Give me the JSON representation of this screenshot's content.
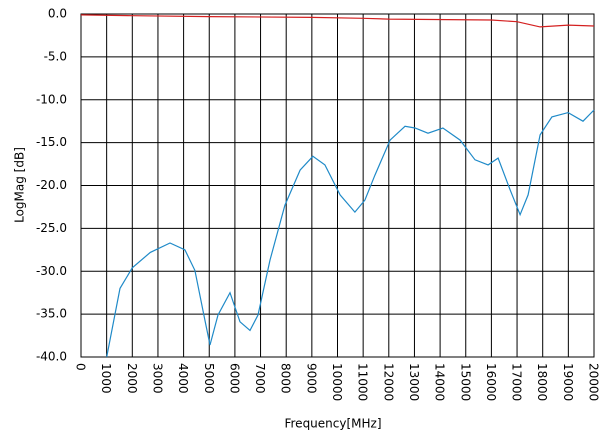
{
  "chart_data": {
    "type": "line",
    "xlabel": "Frequency[MHz]",
    "ylabel": "LogMag [dB]",
    "xlim": [
      0,
      20000
    ],
    "ylim": [
      -40,
      0
    ],
    "xticks": [
      0,
      1000,
      2000,
      3000,
      4000,
      5000,
      6000,
      7000,
      8000,
      9000,
      10000,
      11000,
      12000,
      13000,
      14000,
      15000,
      16000,
      17000,
      18000,
      19000,
      20000
    ],
    "yticks": [
      {
        "value": 0,
        "label": "0.0"
      },
      {
        "value": -5,
        "label": "-5.0"
      },
      {
        "value": -10,
        "label": "-10.0"
      },
      {
        "value": -15,
        "label": "-15.0"
      },
      {
        "value": -20,
        "label": "-20.0"
      },
      {
        "value": -25,
        "label": "-25.0"
      },
      {
        "value": -30,
        "label": "-30.0"
      },
      {
        "value": -35,
        "label": "-35.0"
      },
      {
        "value": -40,
        "label": "-40.0"
      }
    ],
    "grid": true,
    "series": [
      {
        "color": "#d42020",
        "x": [
          0,
          2000,
          5000,
          9000,
          11000,
          12000,
          16000,
          17000,
          17900,
          19000,
          20000
        ],
        "values": [
          -0.1,
          -0.2,
          -0.3,
          -0.4,
          -0.5,
          -0.6,
          -0.7,
          -0.9,
          -1.5,
          -1.3,
          -1.4
        ]
      },
      {
        "color": "#1f8ac8",
        "x": [
          1000,
          1520,
          2000,
          2700,
          3470,
          4050,
          4440,
          4830,
          5030,
          5340,
          5810,
          6200,
          6590,
          6900,
          7370,
          7950,
          8540,
          9040,
          9510,
          10100,
          10680,
          11070,
          11460,
          12050,
          12630,
          13020,
          13530,
          14110,
          14780,
          15360,
          15870,
          16260,
          16730,
          17120,
          17430,
          17900,
          18360,
          18990,
          19570,
          20000
        ],
        "values": [
          -40,
          -32,
          -29.6,
          -27.8,
          -26.7,
          -27.5,
          -29.9,
          -35.7,
          -38.6,
          -35.1,
          -32.5,
          -35.9,
          -36.9,
          -35.1,
          -28.7,
          -22.3,
          -18.2,
          -16.6,
          -17.6,
          -21.1,
          -23.1,
          -21.7,
          -18.8,
          -14.7,
          -13.1,
          -13.3,
          -13.9,
          -13.3,
          -14.7,
          -17.0,
          -17.6,
          -16.8,
          -20.5,
          -23.4,
          -21.1,
          -14.1,
          -12.0,
          -11.5,
          -12.5,
          -11.2
        ]
      }
    ]
  }
}
